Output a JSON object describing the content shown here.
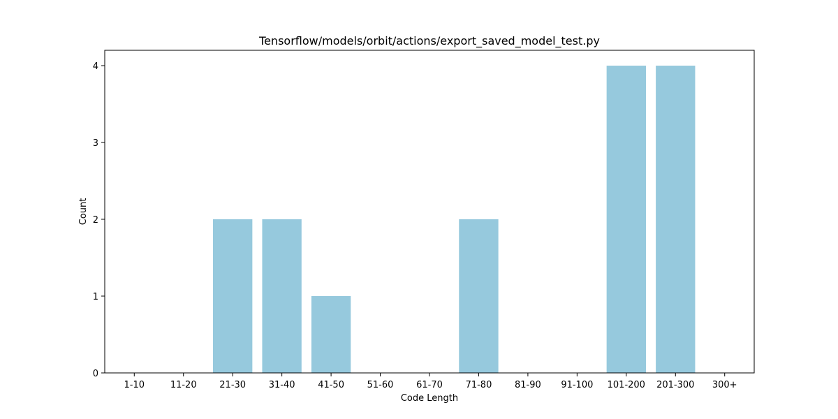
{
  "chart_data": {
    "type": "bar",
    "title": "Tensorflow/models/orbit/actions/export_saved_model_test.py",
    "xlabel": "Code Length",
    "ylabel": "Count",
    "categories": [
      "1-10",
      "11-20",
      "21-30",
      "31-40",
      "41-50",
      "51-60",
      "61-70",
      "71-80",
      "81-90",
      "91-100",
      "101-200",
      "201-300",
      "300+"
    ],
    "values": [
      0,
      0,
      2,
      2,
      1,
      0,
      0,
      2,
      0,
      0,
      4,
      4,
      0
    ],
    "ylim": [
      0,
      4.2
    ],
    "yticks": [
      0,
      1,
      2,
      3,
      4
    ],
    "bar_color": "#96c9dd",
    "grid": false,
    "legend": "none"
  }
}
